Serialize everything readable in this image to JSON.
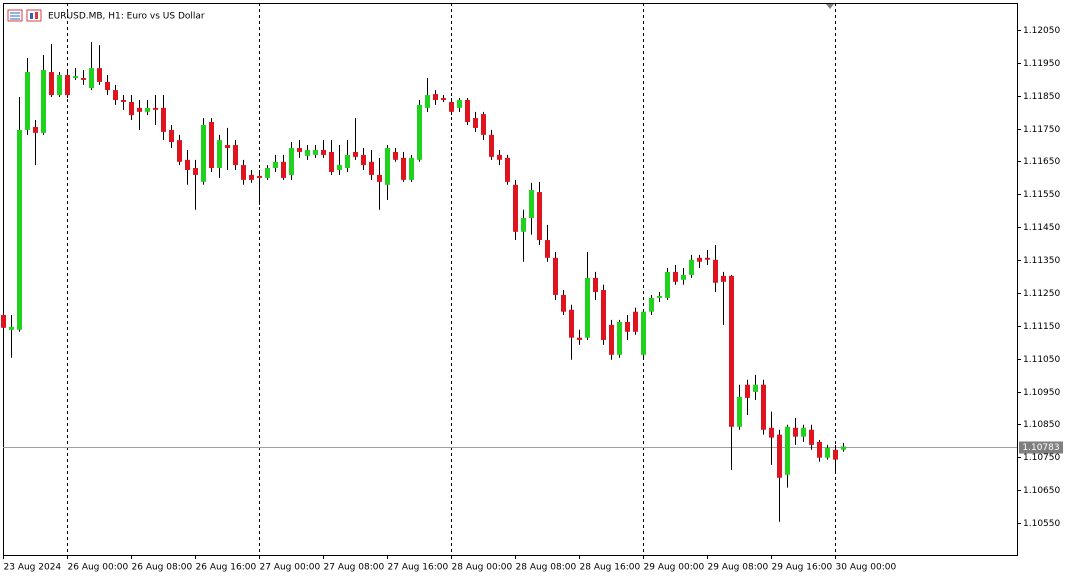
{
  "chart_data": {
    "type": "candlestick",
    "title": "EURUSD.MB, H1:  Euro vs US Dollar",
    "bull_color": "#1ed21e",
    "bear_color": "#e0141e",
    "current_price": 1.10783,
    "ylim": [
      1.10453,
      1.12132
    ],
    "yticks": [
      {
        "value": 1.1205,
        "label": "1.12050"
      },
      {
        "value": 1.1195,
        "label": "1.11950"
      },
      {
        "value": 1.1185,
        "label": "1.11850"
      },
      {
        "value": 1.1175,
        "label": "1.11750"
      },
      {
        "value": 1.1165,
        "label": "1.11650"
      },
      {
        "value": 1.1155,
        "label": "1.11550"
      },
      {
        "value": 1.1145,
        "label": "1.11450"
      },
      {
        "value": 1.1135,
        "label": "1.11350"
      },
      {
        "value": 1.1125,
        "label": "1.11250"
      },
      {
        "value": 1.1115,
        "label": "1.11150"
      },
      {
        "value": 1.1105,
        "label": "1.11050"
      },
      {
        "value": 1.1095,
        "label": "1.10950"
      },
      {
        "value": 1.1085,
        "label": "1.10850"
      },
      {
        "value": 1.1075,
        "label": "1.10750"
      },
      {
        "value": 1.1065,
        "label": "1.10650"
      },
      {
        "value": 1.1055,
        "label": "1.10550"
      }
    ],
    "categories": [
      "23 Aug 2024",
      null,
      null,
      null,
      null,
      null,
      null,
      null,
      "26 Aug 00:00",
      null,
      null,
      null,
      null,
      null,
      null,
      null,
      "26 Aug 08:00",
      null,
      null,
      null,
      null,
      null,
      null,
      null,
      "26 Aug 16:00",
      null,
      null,
      null,
      null,
      null,
      null,
      null,
      "27 Aug 00:00",
      null,
      null,
      null,
      null,
      null,
      null,
      null,
      "27 Aug 08:00",
      null,
      null,
      null,
      null,
      null,
      null,
      null,
      "27 Aug 16:00",
      null,
      null,
      null,
      null,
      null,
      null,
      null,
      "28 Aug 00:00",
      null,
      null,
      null,
      null,
      null,
      null,
      null,
      "28 Aug 08:00",
      null,
      null,
      null,
      null,
      null,
      null,
      null,
      "28 Aug 16:00",
      null,
      null,
      null,
      null,
      null,
      null,
      null,
      "29 Aug 00:00",
      null,
      null,
      null,
      null,
      null,
      null,
      null,
      "29 Aug 08:00",
      null,
      null,
      null,
      null,
      null,
      null,
      null,
      "29 Aug 16:00",
      null,
      null,
      null,
      null,
      null,
      null,
      null,
      "30 Aug 00:00",
      null
    ],
    "open": [
      1.11183,
      1.11138,
      1.11138,
      1.11746,
      1.11755,
      1.11737,
      1.11922,
      1.11852,
      1.11913,
      1.11904,
      1.11904,
      1.11873,
      1.11934,
      1.11892,
      1.11867,
      1.11837,
      1.11831,
      1.11813,
      1.11801,
      1.11813,
      1.11813,
      1.11746,
      1.11715,
      1.11655,
      1.1163,
      1.11588,
      1.1177,
      1.1163,
      1.117,
      1.117,
      1.11639,
      1.11609,
      1.11606,
      1.116,
      1.1163,
      1.11649,
      1.11609,
      1.11691,
      1.11667,
      1.1167,
      1.11685,
      1.11679,
      1.11624,
      1.1163,
      1.11679,
      1.1167,
      1.11649,
      1.11609,
      1.11579,
      1.11679,
      1.11661,
      1.11594,
      1.11655,
      1.11813,
      1.11855,
      1.11843,
      1.11831,
      1.11813,
      1.11837,
      1.11782,
      1.11794,
      1.11731,
      1.1167,
      1.11661,
      1.11579,
      1.11436,
      1.11478,
      1.11557,
      1.11411,
      1.11357,
      1.11244,
      1.11199,
      1.11114,
      1.11114,
      1.11296,
      1.11259,
      1.11153,
      1.11062,
      1.11162,
      1.11193,
      1.11062,
      1.11193,
      1.11235,
      1.11235,
      1.11314,
      1.1129,
      1.11305,
      1.11357,
      1.11357,
      1.11351,
      1.11302,
      1.11302,
      1.10843,
      1.10971,
      1.10949,
      1.10971,
      1.1084,
      1.10819,
      1.10697,
      1.1084,
      1.10813,
      1.10834,
      1.10797,
      1.10749,
      1.10773,
      1.10773
    ],
    "high": [
      1.1119,
      1.11183,
      1.11846,
      1.11965,
      1.11776,
      1.11974,
      1.12007,
      1.11922,
      1.11922,
      1.11934,
      1.11928,
      1.12013,
      1.12004,
      1.11913,
      1.11883,
      1.11852,
      1.11852,
      1.11837,
      1.11837,
      1.11852,
      1.11852,
      1.11761,
      1.11731,
      1.11685,
      1.11655,
      1.11782,
      1.11782,
      1.11731,
      1.11752,
      1.11715,
      1.11655,
      1.11624,
      1.11624,
      1.11639,
      1.1167,
      1.1167,
      1.11709,
      1.11715,
      1.117,
      1.117,
      1.11715,
      1.11715,
      1.117,
      1.11715,
      1.11782,
      1.11691,
      1.11685,
      1.11661,
      1.117,
      1.11691,
      1.11679,
      1.1167,
      1.11837,
      1.11904,
      1.11867,
      1.11852,
      1.11843,
      1.11843,
      1.11843,
      1.11801,
      1.11801,
      1.11746,
      1.11685,
      1.1167,
      1.11594,
      1.11503,
      1.11585,
      1.11588,
      1.11457,
      1.11375,
      1.11259,
      1.11214,
      1.11138,
      1.11375,
      1.11314,
      1.11275,
      1.11168,
      1.11168,
      1.11183,
      1.11205,
      1.11199,
      1.11244,
      1.11253,
      1.11326,
      1.11335,
      1.11326,
      1.11366,
      1.11366,
      1.11381,
      1.11396,
      1.11314,
      1.11305,
      1.10971,
      1.10986,
      1.11001,
      1.10986,
      1.10889,
      1.10834,
      1.10849,
      1.1087,
      1.10849,
      1.10849,
      1.10803,
      1.10788,
      1.10788,
      1.10794
    ],
    "low": [
      1.11138,
      1.11053,
      1.11132,
      1.11731,
      1.11639,
      1.11731,
      1.11846,
      1.11846,
      1.11843,
      1.11898,
      1.11883,
      1.11867,
      1.11883,
      1.11852,
      1.11822,
      1.11807,
      1.11776,
      1.11746,
      1.11791,
      1.11761,
      1.11715,
      1.11691,
      1.11639,
      1.11579,
      1.11503,
      1.11579,
      1.11618,
      1.116,
      1.11624,
      1.11624,
      1.11579,
      1.11585,
      1.11518,
      1.11594,
      1.11618,
      1.11594,
      1.11594,
      1.11661,
      1.11655,
      1.11661,
      1.11661,
      1.11609,
      1.11609,
      1.11618,
      1.11655,
      1.11624,
      1.11594,
      1.11503,
      1.11533,
      1.11649,
      1.11588,
      1.11588,
      1.11649,
      1.11801,
      1.11822,
      1.11831,
      1.11791,
      1.11801,
      1.11761,
      1.1174,
      1.11715,
      1.11655,
      1.11639,
      1.11579,
      1.11411,
      1.11345,
      1.11427,
      1.11396,
      1.11345,
      1.11229,
      1.11183,
      1.11047,
      1.11092,
      1.11107,
      1.11229,
      1.11092,
      1.11047,
      1.11053,
      1.11107,
      1.11123,
      1.11053,
      1.11183,
      1.11223,
      1.11229,
      1.11275,
      1.11275,
      1.11296,
      1.11326,
      1.11335,
      1.11253,
      1.11153,
      1.10712,
      1.10834,
      1.10879,
      1.10925,
      1.10819,
      1.10727,
      1.10554,
      1.10658,
      1.10788,
      1.10797,
      1.10773,
      1.10737,
      1.10743,
      1.10706,
      1.10767
    ],
    "close": [
      1.11144,
      1.11147,
      1.11746,
      1.11922,
      1.11737,
      1.11928,
      1.11852,
      1.11913,
      1.11852,
      1.1191,
      1.11898,
      1.11934,
      1.11892,
      1.11867,
      1.11837,
      1.11831,
      1.11791,
      1.11801,
      1.11813,
      1.11807,
      1.1174,
      1.11709,
      1.11649,
      1.11624,
      1.11609,
      1.11761,
      1.1163,
      1.11715,
      1.11691,
      1.11639,
      1.11594,
      1.11594,
      1.116,
      1.1163,
      1.11649,
      1.116,
      1.11691,
      1.11679,
      1.11685,
      1.11685,
      1.1167,
      1.11618,
      1.11639,
      1.1167,
      1.11664,
      1.11639,
      1.11609,
      1.11588,
      1.11691,
      1.11655,
      1.11594,
      1.11661,
      1.11822,
      1.11852,
      1.11837,
      1.11837,
      1.11801,
      1.11837,
      1.1177,
      1.11752,
      1.11731,
      1.11664,
      1.11655,
      1.11588,
      1.11436,
      1.11478,
      1.11563,
      1.11411,
      1.11357,
      1.11244,
      1.11193,
      1.11114,
      1.11107,
      1.11296,
      1.11253,
      1.11107,
      1.11062,
      1.11162,
      1.11132,
      1.11132,
      1.11193,
      1.11235,
      1.11241,
      1.11314,
      1.11284,
      1.11305,
      1.11351,
      1.11345,
      1.11351,
      1.11281,
      1.11284,
      1.10843,
      1.10934,
      1.10931,
      1.10971,
      1.10834,
      1.1081,
      1.10688,
      1.10843,
      1.10813,
      1.1084,
      1.10788,
      1.10749,
      1.10779,
      1.10743,
      1.10783
    ]
  }
}
